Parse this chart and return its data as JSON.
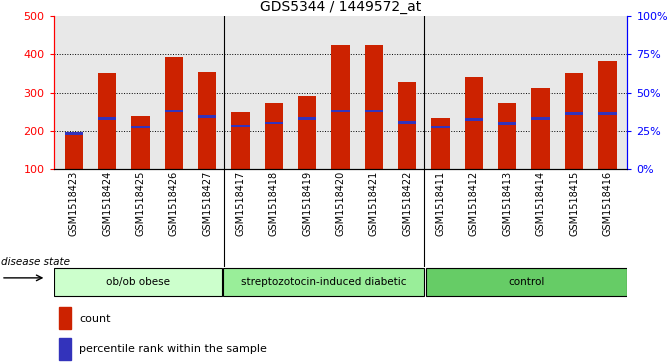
{
  "title": "GDS5344 / 1449572_at",
  "samples": [
    "GSM1518423",
    "GSM1518424",
    "GSM1518425",
    "GSM1518426",
    "GSM1518427",
    "GSM1518417",
    "GSM1518418",
    "GSM1518419",
    "GSM1518420",
    "GSM1518421",
    "GSM1518422",
    "GSM1518411",
    "GSM1518412",
    "GSM1518413",
    "GSM1518414",
    "GSM1518415",
    "GSM1518416"
  ],
  "counts": [
    192,
    352,
    238,
    393,
    355,
    250,
    272,
    292,
    425,
    425,
    328,
    232,
    342,
    272,
    312,
    352,
    382
  ],
  "percentiles": [
    192,
    232,
    210,
    252,
    238,
    212,
    220,
    232,
    252,
    252,
    222,
    210,
    230,
    218,
    232,
    245,
    245
  ],
  "groups": [
    {
      "label": "ob/ob obese",
      "start": 0,
      "end": 5
    },
    {
      "label": "streptozotocin-induced diabetic",
      "start": 5,
      "end": 11
    },
    {
      "label": "control",
      "start": 11,
      "end": 17
    }
  ],
  "group_colors": [
    "#ccffcc",
    "#99ee99",
    "#66cc66"
  ],
  "bar_color": "#cc2200",
  "blue_color": "#3333bb",
  "ylim_left": [
    100,
    500
  ],
  "ylim_right": [
    0,
    100
  ],
  "yticks_left": [
    100,
    200,
    300,
    400,
    500
  ],
  "yticks_right": [
    0,
    25,
    50,
    75,
    100
  ],
  "grid_color": "black",
  "bg_color": "#e8e8e8",
  "legend_count_label": "count",
  "legend_pct_label": "percentile rank within the sample",
  "disease_state_label": "disease state",
  "bar_width": 0.55
}
